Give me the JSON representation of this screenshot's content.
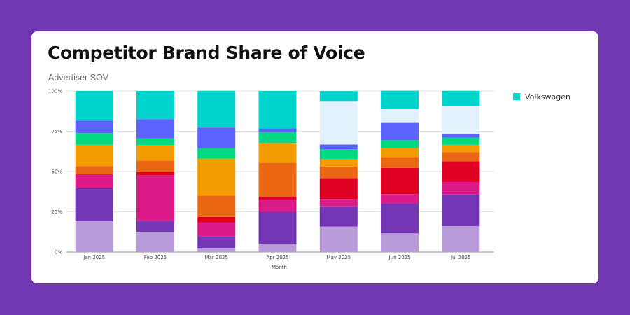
{
  "card": {
    "title": "Competitor Brand Share of Voice"
  },
  "chart_data": {
    "type": "bar",
    "stacked": true,
    "title": "",
    "subtitle": "Advertiser SOV",
    "xlabel": "Month",
    "ylabel": "",
    "ylim": [
      0,
      100
    ],
    "yticks": [
      "0%",
      "25%",
      "50%",
      "75%",
      "100%"
    ],
    "grid": true,
    "legend_position": "right",
    "categories": [
      "Jan 2025",
      "Feb 2025",
      "Mar 2025",
      "Apr 2025",
      "May 2025",
      "Jun 2025",
      "Jul 2025"
    ],
    "series": [
      {
        "color": "#b89bd8",
        "values": [
          19.1,
          12.6,
          2.2,
          5.1,
          15.8,
          11.6,
          16.1
        ]
      },
      {
        "color": "#7436b4",
        "values": [
          20.6,
          6.8,
          7.7,
          19.9,
          12.6,
          18.6,
          19.7
        ]
      },
      {
        "color": "#dc1a88",
        "values": [
          8.6,
          28.1,
          8.4,
          7.5,
          4.6,
          5.8,
          7.7
        ]
      },
      {
        "color": "#e00024",
        "values": [
          0,
          2.2,
          3.5,
          2.0,
          12.9,
          16.2,
          12.9
        ]
      },
      {
        "color": "#ec6714",
        "values": [
          5.1,
          7.1,
          13.3,
          20.9,
          7.2,
          6.7,
          5.7
        ]
      },
      {
        "color": "#f29c00",
        "values": [
          13.2,
          9.6,
          22.9,
          12.3,
          4.6,
          5.7,
          4.5
        ]
      },
      {
        "color": "#00d882",
        "values": [
          7.2,
          4.2,
          6.4,
          6.8,
          6.2,
          4.8,
          4.5
        ]
      },
      {
        "color": "#5b62fe",
        "values": [
          7.8,
          11.9,
          12.9,
          2.3,
          2.9,
          11.2,
          2.2
        ]
      },
      {
        "color": "#e3f1fc",
        "values": [
          0,
          0,
          0,
          0,
          27.0,
          8.3,
          17.2
        ]
      },
      {
        "name": "Volkswagen",
        "color": "#00d4cd",
        "values": [
          18.4,
          17.5,
          22.8,
          23.2,
          6.1,
          11.3,
          9.6
        ]
      }
    ]
  }
}
